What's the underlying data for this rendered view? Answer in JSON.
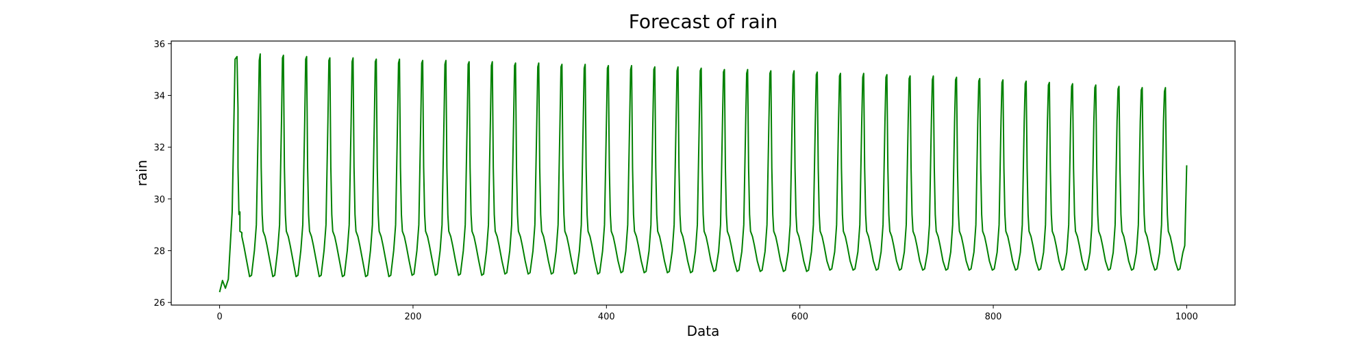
{
  "chart_data": {
    "type": "line",
    "title": "Forecast of rain",
    "xlabel": "Data",
    "ylabel": "rain",
    "xlim": [
      -50,
      1050
    ],
    "ylim": [
      25.9,
      36.1
    ],
    "xticks": [
      0,
      200,
      400,
      600,
      800,
      1000
    ],
    "yticks": [
      26,
      28,
      30,
      32,
      34,
      36
    ],
    "grid": false,
    "legend": "none",
    "series": [
      {
        "color": "#008000",
        "period": 24,
        "x_range": [
          0,
          1000
        ],
        "first_cycle": {
          "x": [
            0,
            3,
            6,
            9,
            13,
            16,
            18,
            19,
            21,
            23
          ],
          "y": [
            26.4,
            26.85,
            26.55,
            26.9,
            29.5,
            35.4,
            35.5,
            33.5,
            29.5,
            28.7
          ]
        },
        "cycle_start": 16,
        "cycle_template_offsets": [
          0,
          1,
          2,
          3,
          4,
          6,
          9,
          12,
          14,
          15,
          16,
          18,
          19,
          20,
          21,
          22,
          23,
          24
        ],
        "cycle_template_values_first": [
          29.0,
          33.0,
          35.55,
          35.4,
          31.0,
          28.7,
          28.3,
          27.2,
          27.0,
          27.3,
          28.8,
          33.0,
          35.6,
          35.4,
          31.0,
          29.4,
          28.7,
          28.6
        ],
        "peak_values": [
          35.5,
          35.6,
          35.55,
          35.5,
          35.45,
          35.45,
          35.4,
          35.4,
          35.35,
          35.35,
          35.3,
          35.3,
          35.25,
          35.25,
          35.2,
          35.2,
          35.15,
          35.15,
          35.1,
          35.1,
          35.05,
          35.0,
          35.0,
          34.95,
          34.95,
          34.9,
          34.85,
          34.85,
          34.8,
          34.75,
          34.75,
          34.7,
          34.65,
          34.6,
          34.55,
          34.5,
          34.45,
          34.4,
          34.35,
          34.3,
          34.3
        ],
        "trough_values": [
          27.0,
          27.0,
          27.0,
          27.0,
          27.0,
          27.0,
          27.0,
          27.05,
          27.05,
          27.05,
          27.05,
          27.1,
          27.1,
          27.1,
          27.1,
          27.1,
          27.15,
          27.15,
          27.15,
          27.15,
          27.2,
          27.2,
          27.2,
          27.2,
          27.2,
          27.25,
          27.25,
          27.25,
          27.25,
          27.25,
          27.25,
          27.25,
          27.25,
          27.25,
          27.25,
          27.25,
          27.25,
          27.25,
          27.25,
          27.25,
          27.25
        ],
        "end": {
          "x": 1000,
          "y": 31.3
        }
      }
    ]
  }
}
